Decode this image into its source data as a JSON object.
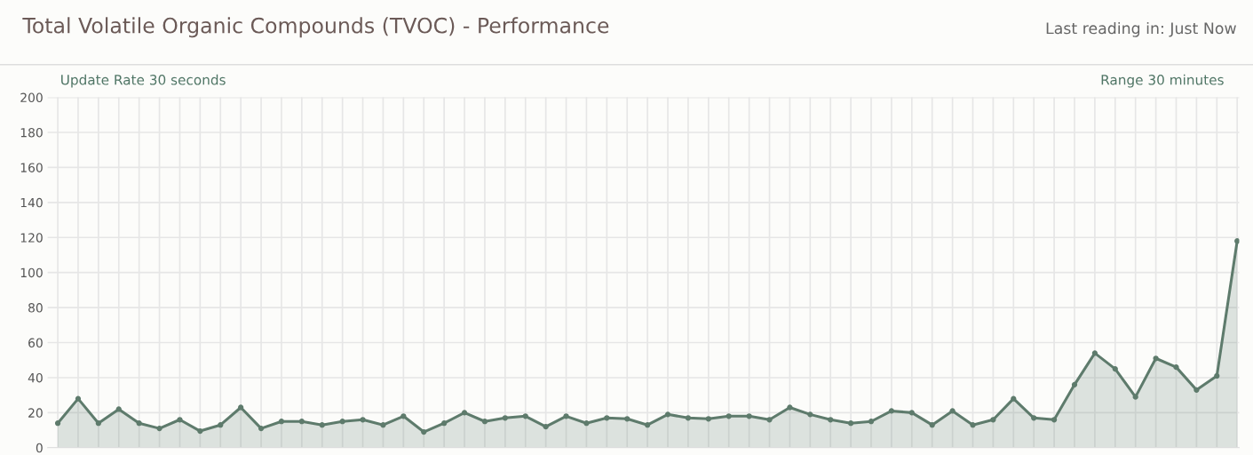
{
  "chart_data": {
    "type": "area",
    "title": "Total Volatile Organic Compounds (TVOC) - Performance",
    "annotations": [
      "Last reading in: Just Now",
      "Update Rate 30 seconds",
      "Range 30 minutes"
    ],
    "categories": [
      null,
      null,
      null,
      null,
      null,
      null,
      null,
      null,
      null,
      null,
      null,
      null,
      null,
      null,
      null,
      null,
      null,
      null,
      null,
      null,
      null,
      null,
      null,
      null,
      null,
      null,
      null,
      null,
      null,
      null,
      null,
      null,
      null,
      null,
      null,
      null,
      null,
      null,
      null,
      null,
      null,
      null,
      null,
      null,
      null,
      null,
      null,
      null,
      null,
      null,
      null,
      null,
      null,
      null,
      null,
      null,
      null,
      null,
      null
    ],
    "series": [
      {
        "color": "#5e7b6c",
        "values": [
          14,
          28,
          14,
          22,
          14,
          11,
          16,
          9.5,
          13,
          23,
          11,
          15,
          15,
          13,
          15,
          16,
          13,
          18,
          9,
          14,
          20,
          15,
          17,
          18,
          12,
          18,
          14,
          17,
          16.5,
          13,
          19,
          17,
          16.5,
          18,
          18,
          16,
          23,
          19,
          16,
          14,
          15,
          21,
          20,
          13,
          21,
          13,
          16,
          28,
          17,
          16,
          36,
          54,
          45,
          29,
          51,
          46,
          33,
          41,
          118
        ]
      }
    ],
    "ylim": [
      0,
      200
    ],
    "yticks": [
      0,
      20,
      40,
      60,
      80,
      100,
      120,
      140,
      160,
      180,
      200
    ],
    "grid": true,
    "marker": "circle",
    "line_style": "solid",
    "tick_labels": "y"
  }
}
